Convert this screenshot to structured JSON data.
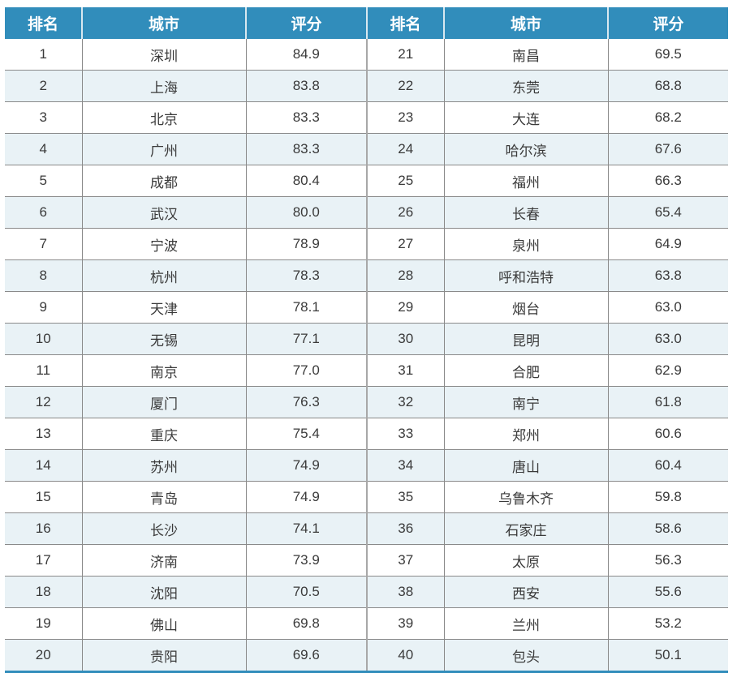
{
  "colors": {
    "header_bg": "#318dbb",
    "header_text": "#ffffff",
    "alt_row": "#e9f2f6"
  },
  "table": {
    "headers": [
      "排名",
      "城市",
      "评分",
      "排名",
      "城市",
      "评分"
    ],
    "rows": [
      {
        "rank": "1",
        "city": "深圳",
        "score": "84.9"
      },
      {
        "rank": "2",
        "city": "上海",
        "score": "83.8"
      },
      {
        "rank": "3",
        "city": "北京",
        "score": "83.3"
      },
      {
        "rank": "4",
        "city": "广州",
        "score": "83.3"
      },
      {
        "rank": "5",
        "city": "成都",
        "score": "80.4"
      },
      {
        "rank": "6",
        "city": "武汉",
        "score": "80.0"
      },
      {
        "rank": "7",
        "city": "宁波",
        "score": "78.9"
      },
      {
        "rank": "8",
        "city": "杭州",
        "score": "78.3"
      },
      {
        "rank": "9",
        "city": "天津",
        "score": "78.1"
      },
      {
        "rank": "10",
        "city": "无锡",
        "score": "77.1"
      },
      {
        "rank": "11",
        "city": "南京",
        "score": "77.0"
      },
      {
        "rank": "12",
        "city": "厦门",
        "score": "76.3"
      },
      {
        "rank": "13",
        "city": "重庆",
        "score": "75.4"
      },
      {
        "rank": "14",
        "city": "苏州",
        "score": "74.9"
      },
      {
        "rank": "15",
        "city": "青岛",
        "score": "74.9"
      },
      {
        "rank": "16",
        "city": "长沙",
        "score": "74.1"
      },
      {
        "rank": "17",
        "city": "济南",
        "score": "73.9"
      },
      {
        "rank": "18",
        "city": "沈阳",
        "score": "70.5"
      },
      {
        "rank": "19",
        "city": "佛山",
        "score": "69.8"
      },
      {
        "rank": "20",
        "city": "贵阳",
        "score": "69.6"
      },
      {
        "rank": "21",
        "city": "南昌",
        "score": "69.5"
      },
      {
        "rank": "22",
        "city": "东莞",
        "score": "68.8"
      },
      {
        "rank": "23",
        "city": "大连",
        "score": "68.2"
      },
      {
        "rank": "24",
        "city": "哈尔滨",
        "score": "67.6"
      },
      {
        "rank": "25",
        "city": "福州",
        "score": "66.3"
      },
      {
        "rank": "26",
        "city": "长春",
        "score": "65.4"
      },
      {
        "rank": "27",
        "city": "泉州",
        "score": "64.9"
      },
      {
        "rank": "28",
        "city": "呼和浩特",
        "score": "63.8"
      },
      {
        "rank": "29",
        "city": "烟台",
        "score": "63.0"
      },
      {
        "rank": "30",
        "city": "昆明",
        "score": "63.0"
      },
      {
        "rank": "31",
        "city": "合肥",
        "score": "62.9"
      },
      {
        "rank": "32",
        "city": "南宁",
        "score": "61.8"
      },
      {
        "rank": "33",
        "city": "郑州",
        "score": "60.6"
      },
      {
        "rank": "34",
        "city": "唐山",
        "score": "60.4"
      },
      {
        "rank": "35",
        "city": "乌鲁木齐",
        "score": "59.8"
      },
      {
        "rank": "36",
        "city": "石家庄",
        "score": "58.6"
      },
      {
        "rank": "37",
        "city": "太原",
        "score": "56.3"
      },
      {
        "rank": "38",
        "city": "西安",
        "score": "55.6"
      },
      {
        "rank": "39",
        "city": "兰州",
        "score": "53.2"
      },
      {
        "rank": "40",
        "city": "包头",
        "score": "50.1"
      }
    ]
  }
}
